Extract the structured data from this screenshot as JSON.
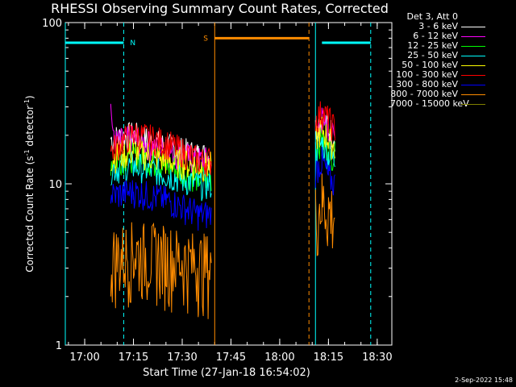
{
  "chart_data": {
    "type": "line",
    "title": "RHESSI Observing Summary Count Rates, Corrected",
    "xlabel": "Start Time (27-Jan-18 16:54:02)",
    "ylabel": "Corrected Count Rate (s",
    "ylabel_sup1": "-1",
    "ylabel_mid": " detector",
    "ylabel_sup2": "-1",
    "ylabel_end": ")",
    "y_scale": "log",
    "ylim": [
      1,
      100
    ],
    "xlim_minutes": [
      "16:54:02",
      "18:34:30"
    ],
    "xticks": [
      "17:00",
      "17:15",
      "17:30",
      "17:45",
      "18:00",
      "18:15",
      "18:30"
    ],
    "yticks": [
      "1",
      "10",
      "100"
    ],
    "legend_header": "Det 3, Att 0",
    "series": [
      {
        "name": "3 - 6 keV",
        "color": "#ffffff",
        "segments": [
          [
            [
              "17:08",
              19.0
            ],
            [
              "17:15",
              20.0
            ],
            [
              "17:25",
              17.0
            ],
            [
              "17:35",
              15.0
            ],
            [
              "17:39",
              15.0
            ]
          ],
          [
            [
              "18:11",
              22.0
            ],
            [
              "18:13",
              26.0
            ],
            [
              "18:15",
              22.0
            ],
            [
              "18:17",
              20.0
            ]
          ]
        ]
      },
      {
        "name": "6 - 12 keV",
        "color": "#ff00ff",
        "segments": [
          [
            [
              "17:08",
              30.0
            ],
            [
              "17:09",
              18.0
            ],
            [
              "17:15",
              19.0
            ],
            [
              "17:25",
              16.0
            ],
            [
              "17:35",
              14.0
            ],
            [
              "17:39",
              14.0
            ]
          ],
          [
            [
              "18:11",
              21.0
            ],
            [
              "18:13",
              25.0
            ],
            [
              "18:15",
              21.0
            ],
            [
              "18:17",
              19.0
            ]
          ]
        ]
      },
      {
        "name": "12 - 25 keV",
        "color": "#00ff00",
        "segments": [
          [
            [
              "17:08",
              14.0
            ],
            [
              "17:15",
              15.0
            ],
            [
              "17:25",
              13.0
            ],
            [
              "17:35",
              11.0
            ],
            [
              "17:39",
              11.0
            ]
          ],
          [
            [
              "18:11",
              17.0
            ],
            [
              "18:13",
              19.0
            ],
            [
              "18:15",
              16.0
            ],
            [
              "18:17",
              15.0
            ]
          ]
        ]
      },
      {
        "name": "25 - 50 keV",
        "color": "#00ffff",
        "segments": [
          [
            [
              "17:08",
              12.5
            ],
            [
              "17:15",
              13.0
            ],
            [
              "17:25",
              11.5
            ],
            [
              "17:35",
              10.0
            ],
            [
              "17:39",
              10.0
            ]
          ],
          [
            [
              "18:11",
              16.0
            ],
            [
              "18:13",
              18.0
            ],
            [
              "18:15",
              15.0
            ],
            [
              "18:17",
              14.0
            ]
          ]
        ]
      },
      {
        "name": "50 - 100 keV",
        "color": "#ffff00",
        "segments": [
          [
            [
              "17:08",
              14.5
            ],
            [
              "17:15",
              16.0
            ],
            [
              "17:25",
              14.0
            ],
            [
              "17:35",
              13.0
            ],
            [
              "17:39",
              13.0
            ]
          ],
          [
            [
              "18:11",
              19.0
            ],
            [
              "18:13",
              22.0
            ],
            [
              "18:15",
              19.0
            ],
            [
              "18:17",
              17.0
            ]
          ]
        ]
      },
      {
        "name": "100 - 300 keV",
        "color": "#ff0000",
        "segments": [
          [
            [
              "17:08",
              16.0
            ],
            [
              "17:15",
              20.5
            ],
            [
              "17:25",
              18.0
            ],
            [
              "17:35",
              14.0
            ],
            [
              "17:39",
              14.0
            ]
          ],
          [
            [
              "18:11",
              25.0
            ],
            [
              "18:13",
              28.0
            ],
            [
              "18:15",
              25.0
            ],
            [
              "18:17",
              22.0
            ]
          ]
        ]
      },
      {
        "name": "300 - 800 keV",
        "color": "#0000ff",
        "segments": [
          [
            [
              "17:08",
              8.5
            ],
            [
              "17:15",
              9.0
            ],
            [
              "17:25",
              8.0
            ],
            [
              "17:35",
              6.5
            ],
            [
              "17:39",
              6.5
            ]
          ],
          [
            [
              "18:11",
              12.0
            ],
            [
              "18:13",
              14.0
            ],
            [
              "18:15",
              11.0
            ],
            [
              "18:17",
              10.0
            ]
          ]
        ]
      },
      {
        "name": "800 - 7000 keV",
        "color": "#ff8c00",
        "segments": [
          [
            [
              "17:08",
              3.5
            ],
            [
              "17:15",
              3.8
            ],
            [
              "17:25",
              3.6
            ],
            [
              "17:35",
              3.2
            ],
            [
              "17:39",
              3.2
            ]
          ],
          [
            [
              "18:11",
              6.5
            ],
            [
              "18:13",
              8.0
            ],
            [
              "18:15",
              7.0
            ],
            [
              "18:17",
              6.5
            ]
          ]
        ]
      },
      {
        "name": "7000 - 15000 keV",
        "color": "#808000",
        "segments": []
      }
    ],
    "state_bars": [
      {
        "label": "N",
        "color": "#00ffff",
        "y": 75,
        "spans": [
          [
            "16:54:02",
            "17:12"
          ],
          [
            "18:13",
            "18:28"
          ]
        ]
      },
      {
        "label": "S",
        "color": "#ff8c00",
        "y": 80,
        "spans": [
          [
            "17:40",
            "18:09"
          ]
        ]
      }
    ],
    "vlines": [
      {
        "time": "16:54:02",
        "color": "#00ffff",
        "dashed": false
      },
      {
        "time": "17:12",
        "color": "#00ffff",
        "dashed": true
      },
      {
        "time": "17:40",
        "color": "#ff8c00",
        "dashed": false
      },
      {
        "time": "18:09",
        "color": "#ff8c00",
        "dashed": true
      },
      {
        "time": "18:11",
        "color": "#00ffff",
        "dashed": false
      },
      {
        "time": "18:28",
        "color": "#00ffff",
        "dashed": true
      }
    ],
    "timestamp": "2-Sep-2022 15:48"
  }
}
